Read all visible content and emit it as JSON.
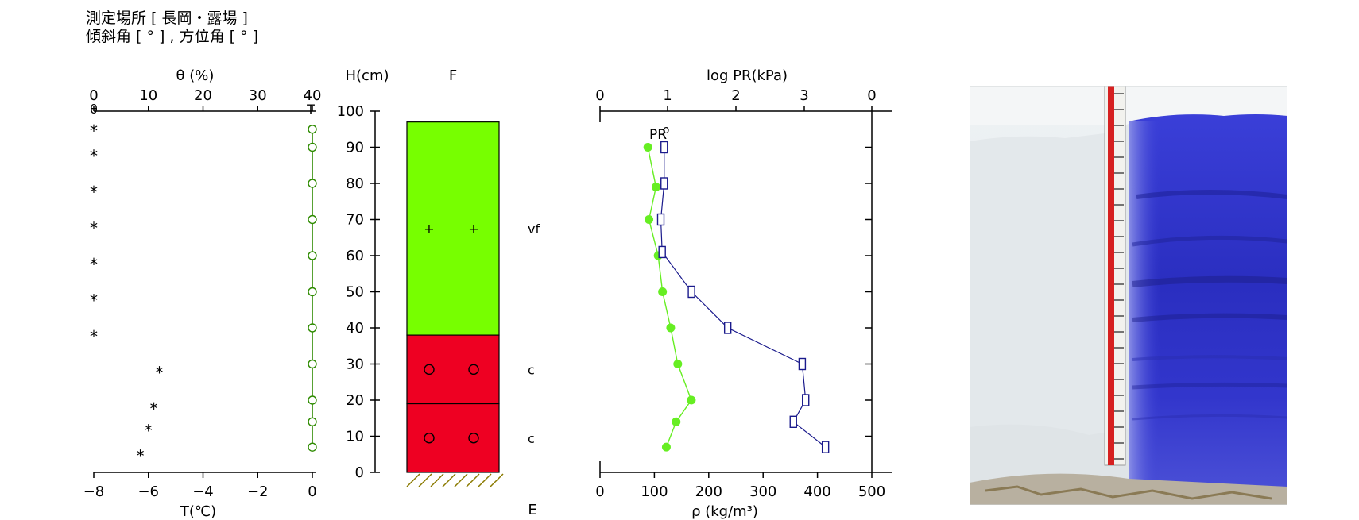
{
  "header": {
    "location_line": "測定場所 [ 長岡・露場 ]",
    "angle_line": "傾斜角 [ ° ] , 方位角 [ ° ]"
  },
  "chart_data": [
    {
      "type": "scatter",
      "title": "",
      "top_axis": {
        "label": "θ (%)",
        "ticks": [
          0,
          10,
          20,
          30,
          40
        ],
        "range": [
          0,
          40
        ]
      },
      "bottom_axis": {
        "label": "T(℃)",
        "ticks": [
          "−8",
          "−6",
          "−4",
          "−2",
          "0"
        ],
        "range": [
          -8,
          0
        ]
      },
      "series": [
        {
          "name": "θ",
          "marker": "open-circle-line",
          "color": "#2e8b00",
          "points": [
            {
              "h": 95,
              "x": 40
            },
            {
              "h": 90,
              "x": 40
            },
            {
              "h": 80,
              "x": 40
            },
            {
              "h": 70,
              "x": 40
            },
            {
              "h": 60,
              "x": 40
            },
            {
              "h": 50,
              "x": 40
            },
            {
              "h": 40,
              "x": 40
            },
            {
              "h": 30,
              "x": 40
            },
            {
              "h": 20,
              "x": 40
            },
            {
              "h": 14,
              "x": 40
            },
            {
              "h": 7,
              "x": 40
            }
          ]
        },
        {
          "name": "T",
          "marker": "asterisk",
          "color": "#000000",
          "points": [
            {
              "h": 95,
              "x": -8
            },
            {
              "h": 88,
              "x": -8
            },
            {
              "h": 78,
              "x": -8
            },
            {
              "h": 68,
              "x": -8
            },
            {
              "h": 58,
              "x": -8
            },
            {
              "h": 48,
              "x": -8
            },
            {
              "h": 38,
              "x": -8
            },
            {
              "h": 28,
              "x": -5.6
            },
            {
              "h": 18,
              "x": -5.8
            },
            {
              "h": 12,
              "x": -6.0
            },
            {
              "h": 5,
              "x": -6.3
            }
          ]
        }
      ],
      "corner_labels": {
        "theta": "θ",
        "temperature": "T"
      }
    },
    {
      "type": "bar",
      "title": "F",
      "ylabel": "H(cm)",
      "yticks": [
        0,
        10,
        20,
        30,
        40,
        50,
        60,
        70,
        80,
        90,
        100
      ],
      "ylim": [
        0,
        100
      ],
      "snow_depth": 97,
      "layers": [
        {
          "bottom": 38,
          "top": 97,
          "color": "#77ff00",
          "grain_label": "vf",
          "symbol": "+"
        },
        {
          "bottom": 19,
          "top": 38,
          "color": "#ee0022",
          "grain_label": "c",
          "symbol": "○"
        },
        {
          "bottom": 0,
          "top": 19,
          "color": "#ee0022",
          "grain_label": "c",
          "symbol": "○"
        }
      ],
      "ground_label": "E"
    },
    {
      "type": "line",
      "top_axis": {
        "label": "log PR(kPa)",
        "ticks": [
          "0",
          "1",
          "2",
          "3",
          "0"
        ]
      },
      "bottom_axis": {
        "label": "ρ (kg/m³)",
        "ticks": [
          0,
          100,
          200,
          300,
          400,
          500
        ],
        "range": [
          0,
          500
        ]
      },
      "xlim": [
        0,
        500
      ],
      "ylim": [
        0,
        100
      ],
      "series": [
        {
          "name": "ρ",
          "color": "#66ee22",
          "marker": "filled-circle",
          "points": [
            {
              "h": 90,
              "rho": 88
            },
            {
              "h": 79,
              "rho": 103
            },
            {
              "h": 70,
              "rho": 90
            },
            {
              "h": 60,
              "rho": 107
            },
            {
              "h": 50,
              "rho": 115
            },
            {
              "h": 40,
              "rho": 130
            },
            {
              "h": 30,
              "rho": 143
            },
            {
              "h": 20,
              "rho": 168
            },
            {
              "h": 14,
              "rho": 140
            },
            {
              "h": 7,
              "rho": 122
            }
          ]
        },
        {
          "name": "PR",
          "color": "#1a1a8c",
          "marker": "open-square",
          "points": [
            {
              "h": 90,
              "logpr": 0.95
            },
            {
              "h": 80,
              "logpr": 0.95
            },
            {
              "h": 70,
              "logpr": 0.9
            },
            {
              "h": 61,
              "logpr": 0.92
            },
            {
              "h": 50,
              "logpr": 1.35
            },
            {
              "h": 40,
              "logpr": 1.88
            },
            {
              "h": 30,
              "logpr": 2.97
            },
            {
              "h": 20,
              "logpr": 3.02
            },
            {
              "h": 14,
              "logpr": 2.84
            },
            {
              "h": 7,
              "logpr": 3.31
            }
          ]
        }
      ],
      "series_labels": {
        "pr": "PR",
        "rho": "ρ"
      }
    }
  ],
  "photo": {
    "kind": "snow pit with blue-dyed wall and measuring ruler"
  }
}
